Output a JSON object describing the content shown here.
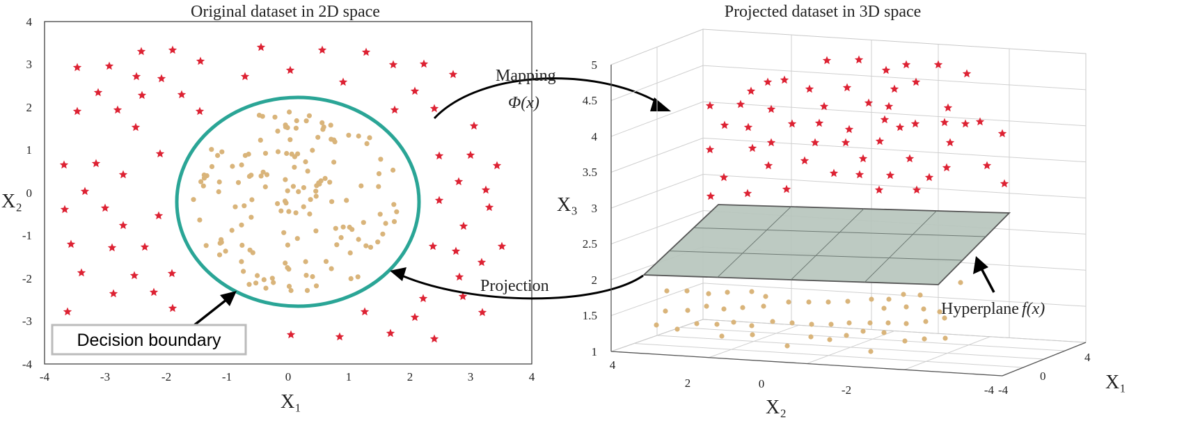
{
  "left_panel": {
    "title": "Original dataset in 2D space",
    "xlabel": "X₁",
    "ylabel": "X₂",
    "x_ticks": [
      "-4",
      "-3",
      "-2",
      "-1",
      "0",
      "1",
      "2",
      "3",
      "4"
    ],
    "y_ticks": [
      "4",
      "3",
      "2",
      "1",
      "0",
      "-1",
      "-2",
      "-3",
      "-4"
    ],
    "boundary_label": "Decision boundary"
  },
  "right_panel": {
    "title": "Projected dataset in 3D space",
    "zlabel": "X₃",
    "x1label": "X₁",
    "x2label": "X₂",
    "z_ticks": [
      "5",
      "4.5",
      "4",
      "3.5",
      "3",
      "2.5",
      "2",
      "1.5",
      "1"
    ],
    "x2_ticks": [
      "4",
      "2",
      "0",
      "-2",
      "-4"
    ],
    "x1_ticks": [
      "-4",
      "0",
      "4"
    ],
    "hyperplane_label": "Hyperplane",
    "hyperplane_func": "f(x)"
  },
  "arrows": {
    "mapping_label": "Mapping",
    "mapping_func": "Φ(x)",
    "projection_label": "Projection"
  },
  "colors": {
    "star": "#dd2233",
    "dot": "#d9b47a",
    "boundary": "#2aa596",
    "plane": "#b7c6bd"
  }
}
